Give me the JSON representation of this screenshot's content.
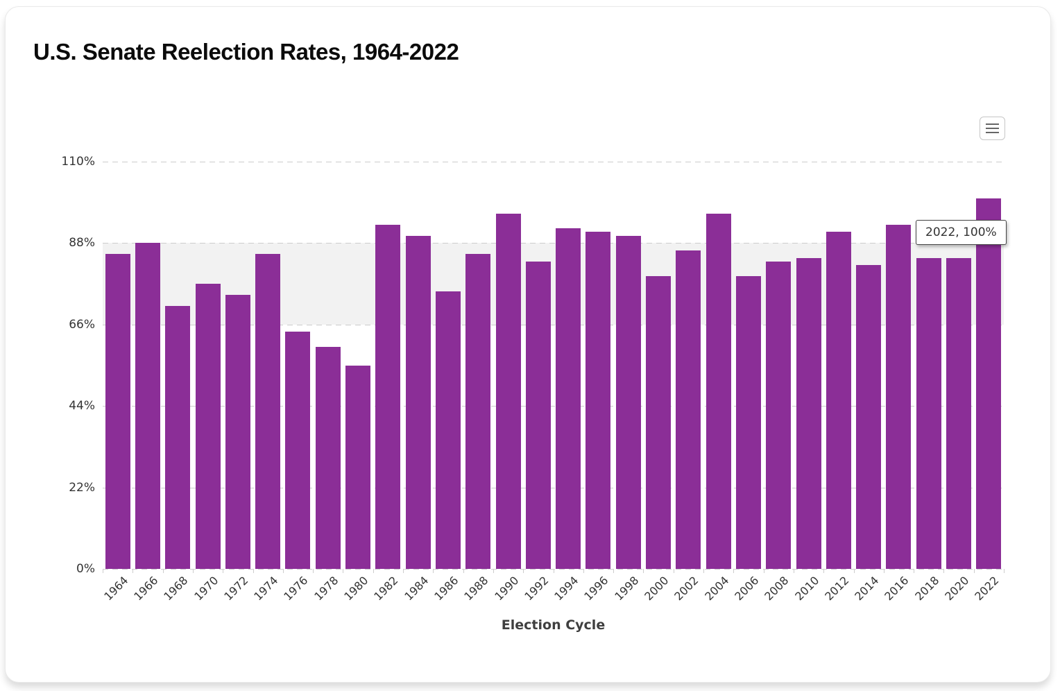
{
  "card": {
    "title": "U.S. Senate Reelection Rates, 1964-2022"
  },
  "toolbar": {
    "menu_icon": "hamburger-menu-icon"
  },
  "tooltip": {
    "label": "2022, 100%",
    "category": "2022",
    "value_pct": 100
  },
  "colors": {
    "bar": "#8b2e97",
    "plot_band": "#f2f2f2",
    "gridline": "#cccccc",
    "axis_text": "#333333"
  },
  "chart_data": {
    "type": "bar",
    "title": "U.S. Senate Reelection Rates, 1964-2022",
    "xlabel": "Election Cycle",
    "ylabel": "",
    "ylim": [
      0,
      110
    ],
    "ytick_values": [
      0,
      22,
      44,
      66,
      88,
      110
    ],
    "ytick_labels": [
      "0%",
      "22%",
      "44%",
      "66%",
      "88%",
      "110%"
    ],
    "grid": "horizontal-dashed",
    "legend": "none",
    "plot_band": {
      "from": 66,
      "to": 88,
      "color": "#f2f2f2"
    },
    "categories": [
      "1964",
      "1966",
      "1968",
      "1970",
      "1972",
      "1974",
      "1976",
      "1978",
      "1980",
      "1982",
      "1984",
      "1986",
      "1988",
      "1990",
      "1992",
      "1994",
      "1996",
      "1998",
      "2000",
      "2002",
      "2004",
      "2006",
      "2008",
      "2010",
      "2012",
      "2014",
      "2016",
      "2018",
      "2020",
      "2022"
    ],
    "values": [
      85,
      88,
      71,
      77,
      74,
      85,
      64,
      60,
      55,
      93,
      90,
      75,
      85,
      96,
      83,
      92,
      91,
      90,
      79,
      86,
      96,
      79,
      83,
      84,
      91,
      82,
      93,
      84,
      84,
      100
    ]
  }
}
